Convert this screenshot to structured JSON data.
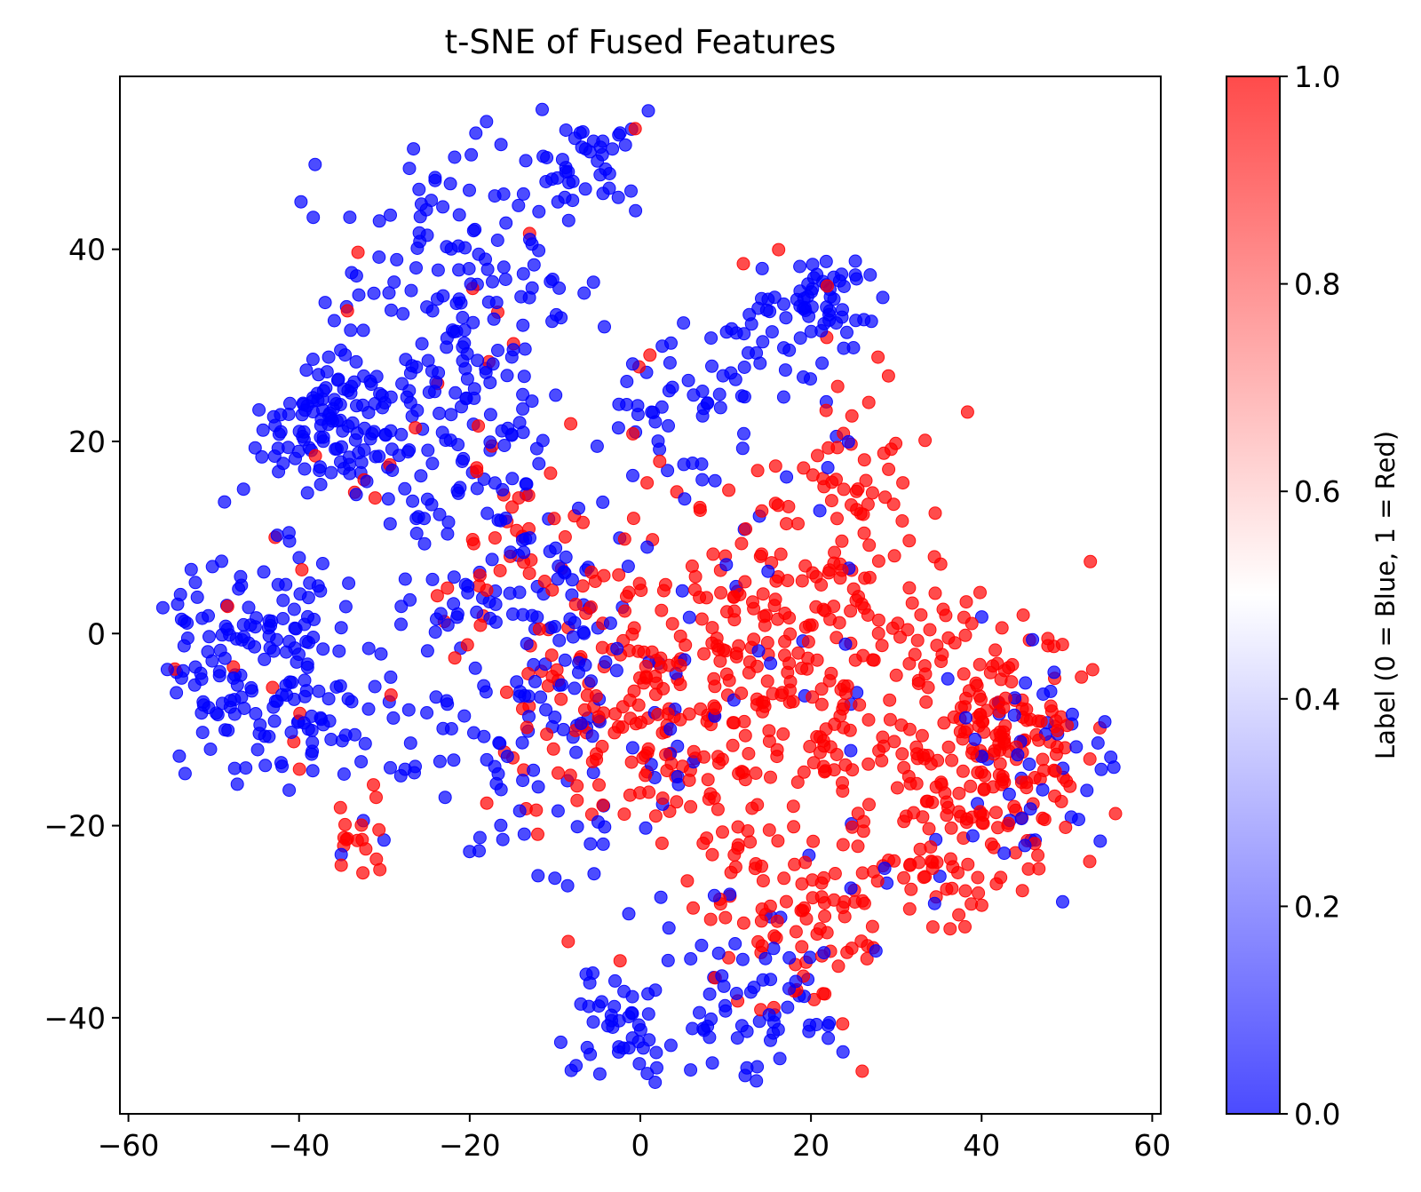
{
  "chart_data": {
    "type": "scatter",
    "title": "t-SNE of Fused Features",
    "xlabel": "",
    "ylabel": "",
    "xlim": [
      -61,
      61
    ],
    "ylim": [
      -50,
      58
    ],
    "x_ticks": [
      -60,
      -40,
      -20,
      0,
      20,
      40,
      60
    ],
    "x_tick_labels": [
      "−60",
      "−40",
      "−20",
      "0",
      "20",
      "40",
      "60"
    ],
    "y_ticks": [
      -40,
      -20,
      0,
      20,
      40
    ],
    "y_tick_labels": [
      "−40",
      "−20",
      "0",
      "20",
      "40"
    ],
    "grid": false,
    "colorbar": {
      "label": "Label (0 = Blue, 1 = Red)",
      "range": [
        0,
        1
      ],
      "ticks": [
        0.0,
        0.2,
        0.4,
        0.6,
        0.8,
        1.0
      ],
      "tick_labels": [
        "0.0",
        "0.2",
        "0.4",
        "0.6",
        "0.8",
        "1.0"
      ],
      "colormap": "bwr",
      "color_low": "#0000ff",
      "color_mid": "#ffffff",
      "color_high": "#ff0000"
    },
    "point_alpha": 0.7,
    "clusters": [
      {
        "label": 0,
        "center": [
          -36,
          22
        ],
        "spread": [
          4,
          4
        ],
        "n": 110
      },
      {
        "label": 0,
        "center": [
          -22,
          26
        ],
        "spread": [
          8,
          10
        ],
        "n": 160
      },
      {
        "label": 0,
        "center": [
          -18,
          40
        ],
        "spread": [
          7,
          6
        ],
        "n": 80
      },
      {
        "label": 0,
        "center": [
          -7,
          49
        ],
        "spread": [
          4,
          3
        ],
        "n": 40
      },
      {
        "label": 0,
        "center": [
          -44,
          0
        ],
        "spread": [
          6,
          5
        ],
        "n": 90
      },
      {
        "label": 0,
        "center": [
          -38,
          -10
        ],
        "spread": [
          6,
          4
        ],
        "n": 70
      },
      {
        "label": 0,
        "center": [
          -50,
          -2
        ],
        "spread": [
          4,
          5
        ],
        "n": 40
      },
      {
        "label": 0,
        "center": [
          -15,
          0
        ],
        "spread": [
          7,
          10
        ],
        "n": 120
      },
      {
        "label": 0,
        "center": [
          21,
          35
        ],
        "spread": [
          4,
          3
        ],
        "n": 55
      },
      {
        "label": 0,
        "center": [
          15,
          28
        ],
        "spread": [
          6,
          6
        ],
        "n": 40
      },
      {
        "label": 0,
        "center": [
          4,
          24
        ],
        "spread": [
          5,
          5
        ],
        "n": 45
      },
      {
        "label": 0,
        "center": [
          -3,
          -41
        ],
        "spread": [
          3,
          3
        ],
        "n": 45
      },
      {
        "label": 0,
        "center": [
          14,
          -38
        ],
        "spread": [
          6,
          5
        ],
        "n": 70
      },
      {
        "label": 0,
        "center": [
          -5,
          -10
        ],
        "spread": [
          8,
          10
        ],
        "n": 60
      },
      {
        "label": 0,
        "center": [
          48,
          -13
        ],
        "spread": [
          5,
          6
        ],
        "n": 40
      },
      {
        "label": 1,
        "center": [
          5,
          -8
        ],
        "spread": [
          12,
          9
        ],
        "n": 260
      },
      {
        "label": 1,
        "center": [
          20,
          -2
        ],
        "spread": [
          10,
          10
        ],
        "n": 200
      },
      {
        "label": 1,
        "center": [
          42,
          -12
        ],
        "spread": [
          6,
          7
        ],
        "n": 200
      },
      {
        "label": 1,
        "center": [
          18,
          -30
        ],
        "spread": [
          7,
          6
        ],
        "n": 80
      },
      {
        "label": 1,
        "center": [
          34,
          -22
        ],
        "spread": [
          5,
          4
        ],
        "n": 45
      },
      {
        "label": 1,
        "center": [
          25,
          18
        ],
        "spread": [
          3,
          4
        ],
        "n": 30
      },
      {
        "label": 1,
        "center": [
          -34,
          -22
        ],
        "spread": [
          2,
          3
        ],
        "n": 18
      },
      {
        "label": 1,
        "center": [
          -12,
          8
        ],
        "spread": [
          8,
          6
        ],
        "n": 40
      }
    ]
  }
}
